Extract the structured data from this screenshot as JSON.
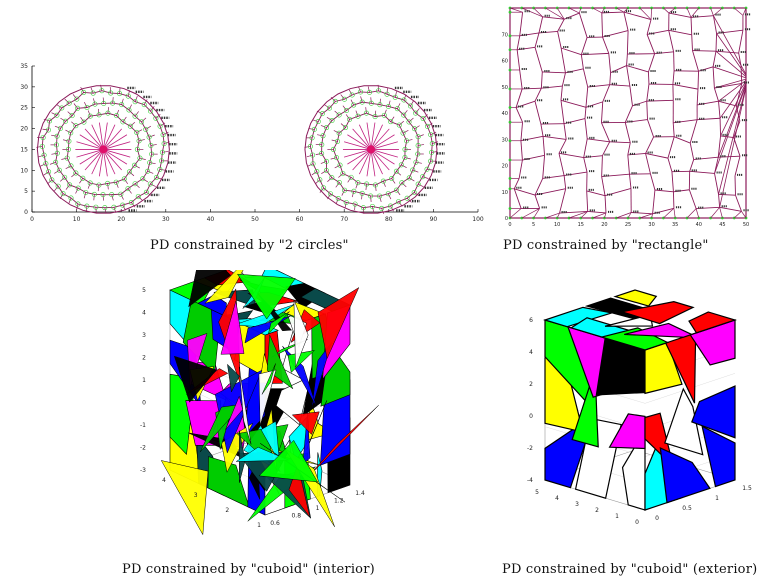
{
  "figures": [
    {
      "id": "two-circles",
      "caption": "PD constrained by \"2 circles\"",
      "x_ticks": [
        "0",
        "10",
        "20",
        "30",
        "40",
        "50",
        "60",
        "70",
        "80",
        "90",
        "100"
      ],
      "y_ticks": [
        "0",
        "5",
        "10",
        "15",
        "20",
        "25",
        "30",
        "35"
      ],
      "xlim": [
        0,
        100
      ],
      "ylim": [
        0,
        35
      ]
    },
    {
      "id": "rectangle",
      "caption": "PD constrained by \"rectangle\"",
      "x_ticks": [
        "0",
        "5",
        "10",
        "15",
        "20",
        "25",
        "30",
        "35",
        "40",
        "45",
        "50"
      ],
      "y_ticks": [
        "0",
        "10",
        "20",
        "30",
        "40",
        "50",
        "60",
        "70"
      ],
      "xlim": [
        0,
        50
      ],
      "ylim": [
        0,
        80
      ]
    },
    {
      "id": "cuboid-interior",
      "caption": "PD constrained by \"cuboid\" (interior)",
      "z_ticks": [
        "5",
        "4",
        "3",
        "2",
        "1",
        "0",
        "-1",
        "-2",
        "-3"
      ],
      "x_ticks": [
        "4",
        "3",
        "2",
        "1"
      ],
      "y_ticks": [
        "0.6",
        "0.8",
        "1",
        "1.2",
        "1.4"
      ]
    },
    {
      "id": "cuboid-exterior",
      "caption": "PD constrained by \"cuboid\" (exterior)",
      "z_ticks": [
        "6",
        "4",
        "2",
        "0",
        "-2",
        "-4"
      ],
      "x_ticks": [
        "5",
        "4",
        "3",
        "2",
        "1",
        "0"
      ],
      "y_ticks": [
        "0",
        "0.5",
        "1",
        "1.5"
      ]
    }
  ],
  "colors": {
    "edge": "#8b1a5a",
    "vertex": "#33cc33",
    "center": "#e0106a"
  }
}
